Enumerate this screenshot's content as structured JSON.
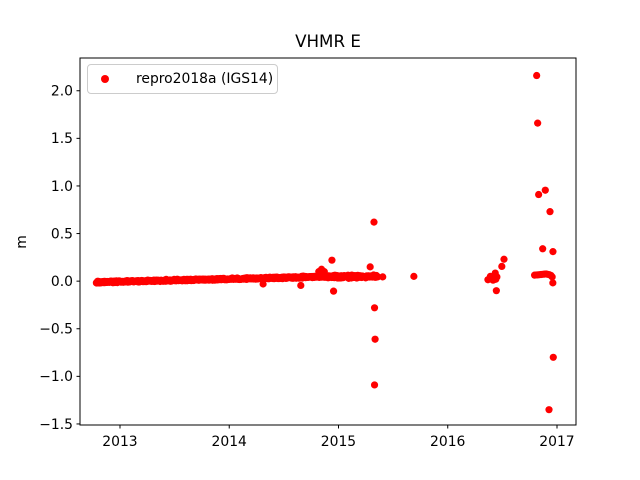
{
  "chart_data": {
    "type": "scatter",
    "title": "VHMR E",
    "xlabel": "",
    "ylabel": "m",
    "xlim": [
      2012.634,
      2017.174
    ],
    "ylim": [
      -1.511,
      2.344
    ],
    "xticks": [
      2013,
      2014,
      2015,
      2016,
      2017
    ],
    "xtick_labels": [
      "2013",
      "2014",
      "2015",
      "2016",
      "2017"
    ],
    "yticks": [
      -1.5,
      -1.0,
      -0.5,
      0.0,
      0.5,
      1.0,
      1.5,
      2.0
    ],
    "ytick_labels": [
      "−1.5",
      "−1.0",
      "−0.5",
      "0.0",
      "0.5",
      "1.0",
      "1.5",
      "2.0"
    ],
    "grid": false,
    "background_color": "#ffffff",
    "axis_color": "#000000",
    "legend": {
      "position": "upper left",
      "entries": [
        {
          "label": "repro2018a (IGS14)",
          "marker": "circle",
          "color": "#ff0000"
        }
      ]
    },
    "series": [
      {
        "name": "repro2018a (IGS14)",
        "color": "#ff0000",
        "marker": "circle",
        "marker_diameter_px": 7.2,
        "band_segments": [
          {
            "x_start": 2012.785,
            "x_end": 2014.925,
            "n": 620,
            "y_start": -0.012,
            "y_end": 0.048,
            "jitter": 0.009
          },
          {
            "x_start": 2014.93,
            "x_end": 2015.35,
            "n": 140,
            "y_start": 0.045,
            "y_end": 0.052,
            "jitter": 0.015
          }
        ],
        "points": [
          [
            2014.31,
            -0.03
          ],
          [
            2014.655,
            -0.045
          ],
          [
            2014.82,
            0.1
          ],
          [
            2014.845,
            0.125
          ],
          [
            2014.87,
            0.1
          ],
          [
            2014.94,
            0.22
          ],
          [
            2014.955,
            -0.105
          ],
          [
            2015.29,
            0.15
          ],
          [
            2015.325,
            0.62
          ],
          [
            2015.33,
            -0.28
          ],
          [
            2015.335,
            -0.61
          ],
          [
            2015.33,
            -1.09
          ],
          [
            2015.36,
            0.045
          ],
          [
            2015.405,
            0.045
          ],
          [
            2015.69,
            0.05
          ],
          [
            2016.368,
            0.015
          ],
          [
            2016.39,
            0.05
          ],
          [
            2016.415,
            0.01
          ],
          [
            2016.425,
            0.04
          ],
          [
            2016.435,
            0.085
          ],
          [
            2016.44,
            0.02
          ],
          [
            2016.445,
            -0.1
          ],
          [
            2016.45,
            0.045
          ],
          [
            2016.495,
            0.155
          ],
          [
            2016.515,
            0.23
          ],
          [
            2016.795,
            0.063
          ],
          [
            2016.81,
            0.065
          ],
          [
            2016.825,
            0.066
          ],
          [
            2016.84,
            0.068
          ],
          [
            2016.855,
            0.07
          ],
          [
            2016.87,
            0.072
          ],
          [
            2016.885,
            0.074
          ],
          [
            2016.9,
            0.075
          ],
          [
            2016.915,
            0.072
          ],
          [
            2016.93,
            0.068
          ],
          [
            2016.945,
            0.06
          ],
          [
            2016.956,
            0.045
          ],
          [
            2016.962,
            -0.018
          ],
          [
            2016.814,
            2.16
          ],
          [
            2016.823,
            1.66
          ],
          [
            2016.832,
            0.91
          ],
          [
            2016.893,
            0.955
          ],
          [
            2016.936,
            0.73
          ],
          [
            2016.869,
            0.34
          ],
          [
            2016.963,
            0.31
          ],
          [
            2016.927,
            -1.35
          ],
          [
            2016.966,
            -0.8
          ]
        ]
      }
    ]
  }
}
